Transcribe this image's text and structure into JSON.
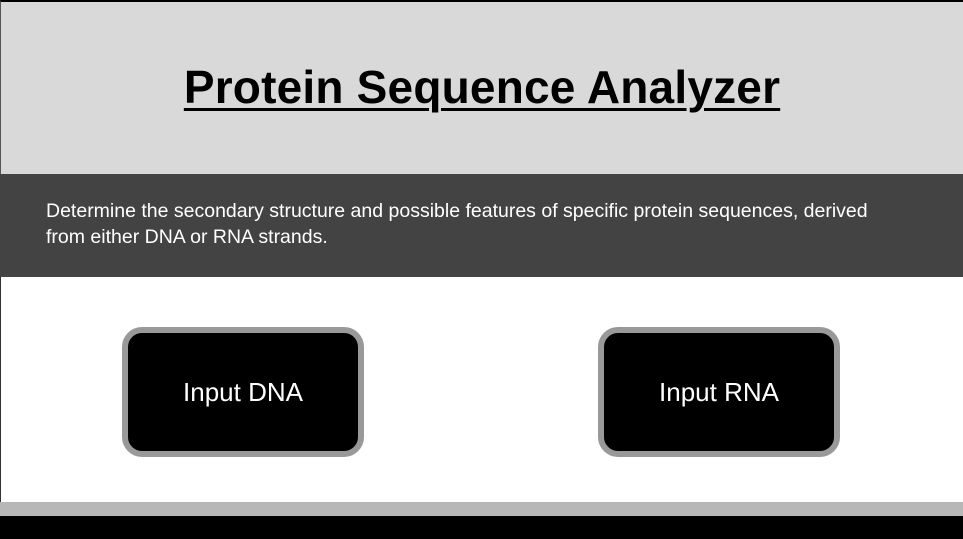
{
  "header": {
    "title": "Protein Sequence Analyzer"
  },
  "description": {
    "text": "Determine the secondary structure and possible features of specific protein sequences, derived from either DNA or RNA strands."
  },
  "actions": {
    "input_dna_label": "Input DNA",
    "input_rna_label": "Input RNA"
  },
  "colors": {
    "header_bg": "#d9d9d9",
    "description_bg": "#434343",
    "button_bg": "#000000",
    "button_border": "#999999",
    "footer_light": "#b7b7b7",
    "footer_dark": "#000000"
  }
}
